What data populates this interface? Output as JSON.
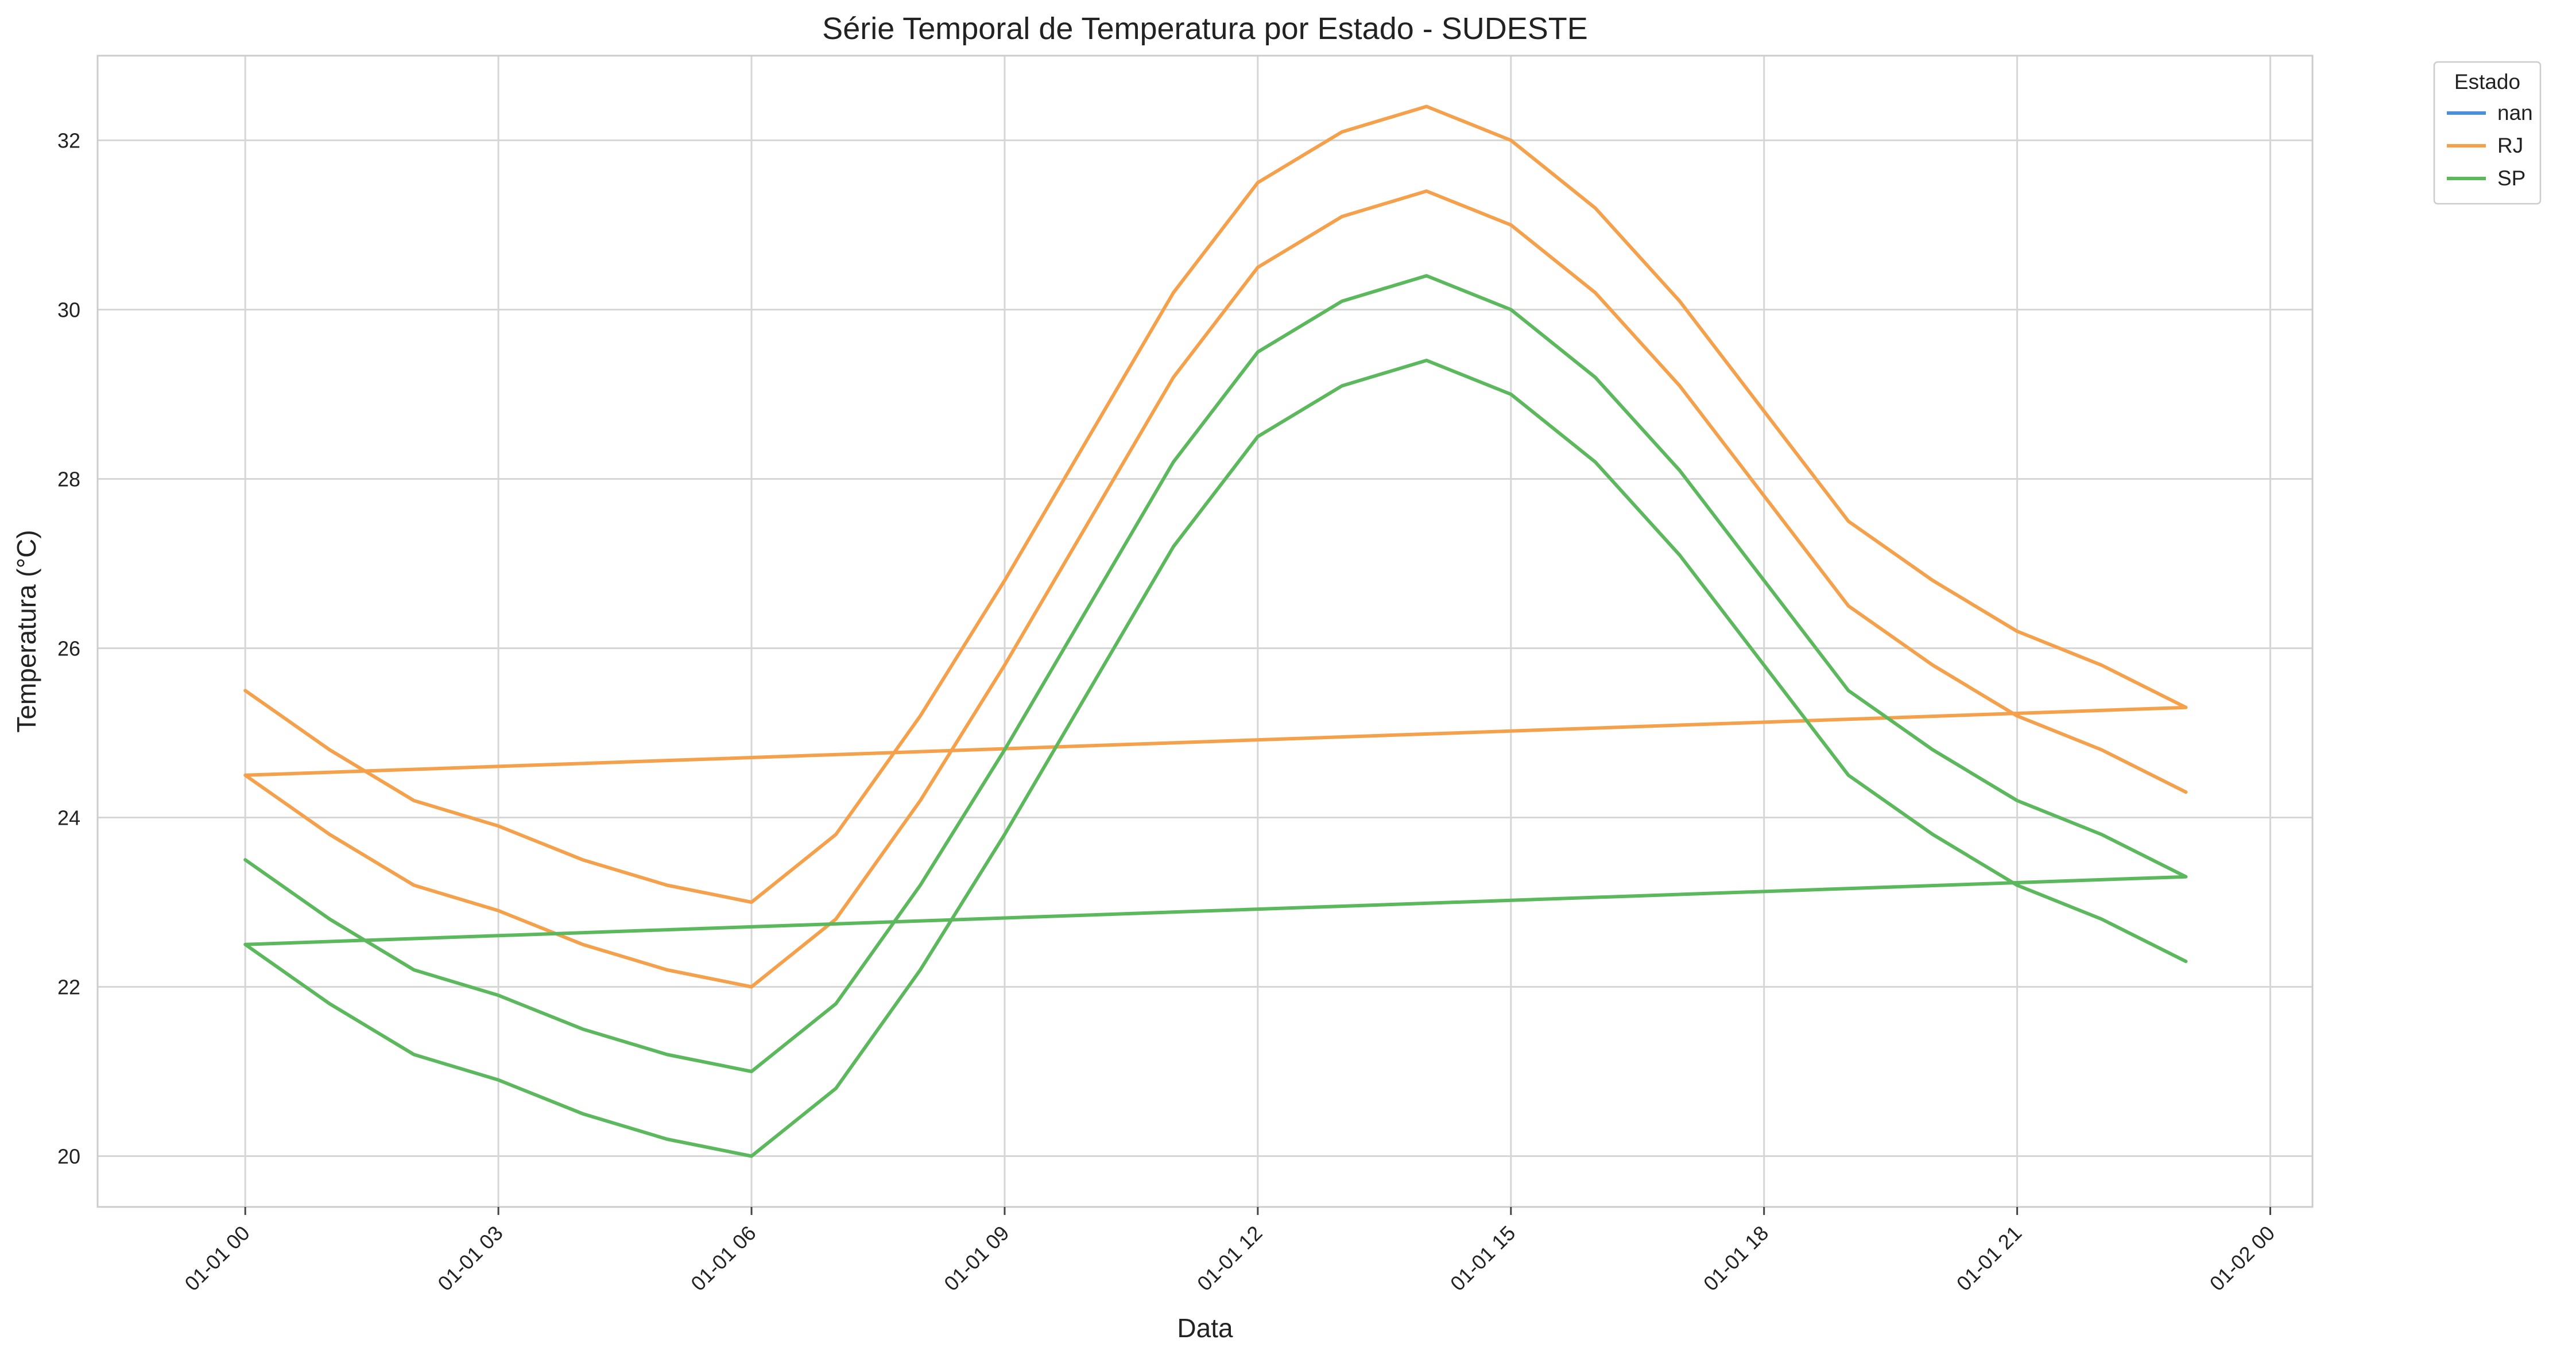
{
  "chart_data": {
    "type": "line",
    "title": "Série Temporal de Temperatura por Estado - SUDESTE",
    "xlabel": "Data",
    "ylabel": "Temperatura (°C)",
    "xlim": [
      "01-01 -01:45",
      "01-02 00:30"
    ],
    "ylim": [
      19.4,
      33.0
    ],
    "x_ticks": [
      "01-01 00",
      "01-01 03",
      "01-01 06",
      "01-01 09",
      "01-01 12",
      "01-01 15",
      "01-01 18",
      "01-01 21",
      "01-02 00"
    ],
    "y_ticks": [
      20,
      22,
      24,
      26,
      28,
      30,
      32
    ],
    "grid": true,
    "legend": {
      "title": "Estado",
      "placement": "upper right, outside"
    },
    "series": [
      {
        "name": "nan",
        "color": "#4a90d9",
        "x": [],
        "values": []
      },
      {
        "name": "RJ",
        "color": "#f5a04a",
        "x": [
          "01-01 00",
          "01-01 01",
          "01-01 02",
          "01-01 03",
          "01-01 04",
          "01-01 05",
          "01-01 06",
          "01-01 07",
          "01-01 08",
          "01-01 09",
          "01-01 10",
          "01-01 11",
          "01-01 12",
          "01-01 13",
          "01-01 14",
          "01-01 15",
          "01-01 16",
          "01-01 17",
          "01-01 18",
          "01-01 19",
          "01-01 20",
          "01-01 21",
          "01-01 22",
          "01-01 23",
          "01-01 00",
          "01-01 01",
          "01-01 02",
          "01-01 03",
          "01-01 04",
          "01-01 05",
          "01-01 06",
          "01-01 07",
          "01-01 08",
          "01-01 09",
          "01-01 10",
          "01-01 11",
          "01-01 12",
          "01-01 13",
          "01-01 14",
          "01-01 15",
          "01-01 16",
          "01-01 17",
          "01-01 18",
          "01-01 19",
          "01-01 20",
          "01-01 21",
          "01-01 22",
          "01-01 23"
        ],
        "values": [
          25.5,
          24.8,
          24.2,
          23.9,
          23.5,
          23.2,
          23.0,
          23.8,
          25.2,
          26.8,
          28.5,
          30.2,
          31.5,
          32.1,
          32.4,
          32.0,
          31.2,
          30.1,
          28.8,
          27.5,
          26.8,
          26.2,
          25.8,
          25.3,
          24.5,
          23.8,
          23.2,
          22.9,
          22.5,
          22.2,
          22.0,
          22.8,
          24.2,
          25.8,
          27.5,
          29.2,
          30.5,
          31.1,
          31.4,
          31.0,
          30.2,
          29.1,
          27.8,
          26.5,
          25.8,
          25.2,
          24.8,
          24.3
        ],
        "wraparound": {
          "from": "01-01 23",
          "to": "01-01 00",
          "start_value": 24.3,
          "end_value": 25.5
        }
      },
      {
        "name": "SP",
        "color": "#5cb85c",
        "x": [
          "01-01 00",
          "01-01 01",
          "01-01 02",
          "01-01 03",
          "01-01 04",
          "01-01 05",
          "01-01 06",
          "01-01 07",
          "01-01 08",
          "01-01 09",
          "01-01 10",
          "01-01 11",
          "01-01 12",
          "01-01 13",
          "01-01 14",
          "01-01 15",
          "01-01 16",
          "01-01 17",
          "01-01 18",
          "01-01 19",
          "01-01 20",
          "01-01 21",
          "01-01 22",
          "01-01 23",
          "01-01 00",
          "01-01 01",
          "01-01 02",
          "01-01 03",
          "01-01 04",
          "01-01 05",
          "01-01 06",
          "01-01 07",
          "01-01 08",
          "01-01 09",
          "01-01 10",
          "01-01 11",
          "01-01 12",
          "01-01 13",
          "01-01 14",
          "01-01 15",
          "01-01 16",
          "01-01 17",
          "01-01 18",
          "01-01 19",
          "01-01 20",
          "01-01 21",
          "01-01 22",
          "01-01 23"
        ],
        "values": [
          23.5,
          22.8,
          22.2,
          21.9,
          21.5,
          21.2,
          21.0,
          21.8,
          23.2,
          24.8,
          26.5,
          28.2,
          29.5,
          30.1,
          30.4,
          30.0,
          29.2,
          28.1,
          26.8,
          25.5,
          24.8,
          24.2,
          23.8,
          23.3,
          22.5,
          21.8,
          21.2,
          20.9,
          20.5,
          20.2,
          20.0,
          20.8,
          22.2,
          23.8,
          25.5,
          27.2,
          28.5,
          29.1,
          29.4,
          29.0,
          28.2,
          27.1,
          25.8,
          24.5,
          23.8,
          23.2,
          22.8,
          22.3
        ],
        "wraparound": {
          "from": "01-01 23",
          "to": "01-01 00",
          "start_value": 22.3,
          "end_value": 23.5
        }
      }
    ]
  }
}
